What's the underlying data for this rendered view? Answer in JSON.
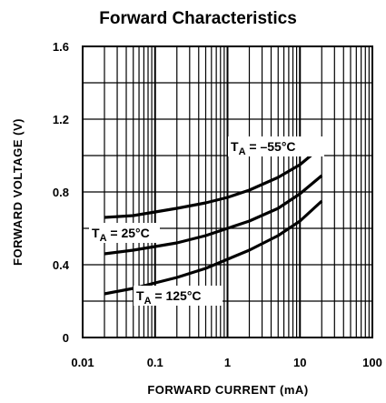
{
  "chart_data": {
    "type": "line",
    "title": "Forward Characteristics",
    "xlabel": "FORWARD CURRENT (mA)",
    "ylabel": "FORWARD VOLTAGE (V)",
    "xscale": "log",
    "xlim": [
      0.01,
      100
    ],
    "ylim": [
      0,
      1.6
    ],
    "x_ticks": [
      "0.01",
      "0.1",
      "1",
      "10",
      "100"
    ],
    "y_ticks": [
      "0",
      "0.4",
      "0.8",
      "1.2",
      "1.6"
    ],
    "grid": true,
    "series": [
      {
        "name": "T_A = -55°C",
        "label_main": "T",
        "label_sub": "A",
        "label_rest": " = –55°C",
        "x": [
          0.02,
          0.05,
          0.1,
          0.2,
          0.5,
          1,
          2,
          5,
          10,
          20
        ],
        "y": [
          0.66,
          0.67,
          0.69,
          0.71,
          0.74,
          0.77,
          0.81,
          0.88,
          0.95,
          1.05
        ]
      },
      {
        "name": "T_A = 25°C",
        "label_main": "T",
        "label_sub": "A",
        "label_rest": " = 25°C",
        "x": [
          0.02,
          0.05,
          0.1,
          0.2,
          0.5,
          1,
          2,
          5,
          10,
          20
        ],
        "y": [
          0.46,
          0.48,
          0.5,
          0.52,
          0.56,
          0.6,
          0.64,
          0.71,
          0.79,
          0.89
        ]
      },
      {
        "name": "T_A = 125°C",
        "label_main": "T",
        "label_sub": "A",
        "label_rest": " = 125°C",
        "x": [
          0.02,
          0.05,
          0.1,
          0.2,
          0.5,
          1,
          2,
          5,
          10,
          20
        ],
        "y": [
          0.24,
          0.27,
          0.3,
          0.33,
          0.38,
          0.43,
          0.48,
          0.56,
          0.64,
          0.75
        ]
      }
    ]
  }
}
